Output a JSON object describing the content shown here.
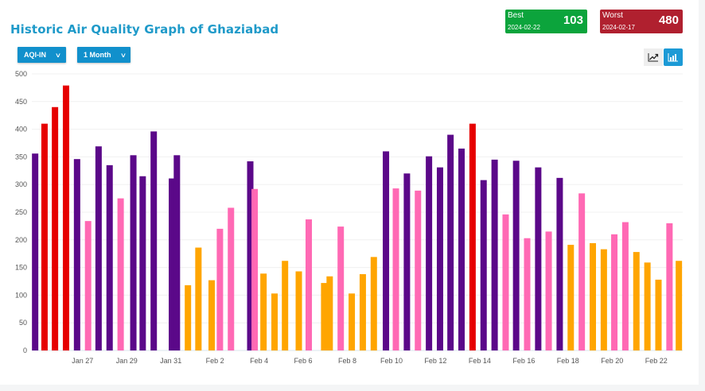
{
  "header": {
    "title": "Historic Air Quality Graph of Ghaziabad",
    "metric_dropdown": "AQI-IN",
    "range_dropdown": "1 Month"
  },
  "best": {
    "label": "Best",
    "date": "2024-02-22",
    "value": "103",
    "color": "#0ca43c"
  },
  "worst": {
    "label": "Worst",
    "date": "2024-02-17",
    "value": "480",
    "color": "#b0202f"
  },
  "view_toggle": {
    "line_icon": "line-chart-icon",
    "bar_icon": "bar-chart-icon",
    "active": "bar"
  },
  "chart_data": {
    "type": "bar",
    "title": "Historic Air Quality Graph of Ghaziabad",
    "xlabel": "",
    "ylabel": "AQI-IN",
    "ylim": [
      0,
      500
    ],
    "yticks": [
      0,
      50,
      100,
      150,
      200,
      250,
      300,
      350,
      400,
      450,
      500
    ],
    "grid": true,
    "legend": "none",
    "x_tick_labels": [
      "Jan 27",
      "Jan 29",
      "Jan 31",
      "Feb 2",
      "Feb 4",
      "Feb 6",
      "Feb 8",
      "Feb 10",
      "Feb 12",
      "Feb 14",
      "Feb 16",
      "Feb 18",
      "Feb 20",
      "Feb 22"
    ],
    "x_tick_positions_days": [
      2.0,
      6.0,
      10.0,
      14.0,
      18.0,
      22.0,
      26.0,
      30.0,
      34.0,
      38.0,
      42.0,
      46.0,
      50.0,
      54.0
    ],
    "x_range_days": [
      -2.6,
      56.4
    ],
    "color_scale": [
      {
        "max": 100,
        "color": "#59b61f"
      },
      {
        "max": 200,
        "color": "#ffa500"
      },
      {
        "max": 300,
        "color": "#ff69b4"
      },
      {
        "max": 400,
        "color": "#5b0889"
      },
      {
        "max": 500,
        "color": "#e60000"
      }
    ],
    "bars": [
      {
        "x": -2.3,
        "value": 356
      },
      {
        "x": -1.45,
        "value": 410
      },
      {
        "x": -0.5,
        "value": 440
      },
      {
        "x": 0.5,
        "value": 479
      },
      {
        "x": 1.5,
        "value": 346
      },
      {
        "x": 2.5,
        "value": 234
      },
      {
        "x": 3.45,
        "value": 369
      },
      {
        "x": 4.45,
        "value": 335
      },
      {
        "x": 5.45,
        "value": 275
      },
      {
        "x": 6.6,
        "value": 353
      },
      {
        "x": 7.45,
        "value": 315
      },
      {
        "x": 8.45,
        "value": 396
      },
      {
        "x": 10.1,
        "value": 311
      },
      {
        "x": 10.55,
        "value": 353
      },
      {
        "x": 11.55,
        "value": 118
      },
      {
        "x": 12.5,
        "value": 186
      },
      {
        "x": 13.7,
        "value": 127
      },
      {
        "x": 14.45,
        "value": 220
      },
      {
        "x": 15.45,
        "value": 258
      },
      {
        "x": 17.2,
        "value": 342
      },
      {
        "x": 17.6,
        "value": 292
      },
      {
        "x": 18.4,
        "value": 139
      },
      {
        "x": 19.4,
        "value": 103
      },
      {
        "x": 20.35,
        "value": 162
      },
      {
        "x": 21.6,
        "value": 143
      },
      {
        "x": 22.5,
        "value": 237
      },
      {
        "x": 23.9,
        "value": 122
      },
      {
        "x": 24.4,
        "value": 134
      },
      {
        "x": 25.4,
        "value": 224
      },
      {
        "x": 26.4,
        "value": 103
      },
      {
        "x": 27.4,
        "value": 138
      },
      {
        "x": 28.4,
        "value": 169
      },
      {
        "x": 29.5,
        "value": 360
      },
      {
        "x": 30.4,
        "value": 293
      },
      {
        "x": 31.4,
        "value": 320
      },
      {
        "x": 32.4,
        "value": 289
      },
      {
        "x": 33.4,
        "value": 351
      },
      {
        "x": 34.4,
        "value": 331
      },
      {
        "x": 35.35,
        "value": 390
      },
      {
        "x": 36.35,
        "value": 365
      },
      {
        "x": 37.35,
        "value": 410
      },
      {
        "x": 38.35,
        "value": 308
      },
      {
        "x": 39.35,
        "value": 345
      },
      {
        "x": 40.35,
        "value": 246
      },
      {
        "x": 41.3,
        "value": 343
      },
      {
        "x": 42.3,
        "value": 203
      },
      {
        "x": 43.3,
        "value": 331
      },
      {
        "x": 44.25,
        "value": 215
      },
      {
        "x": 45.25,
        "value": 312
      },
      {
        "x": 46.25,
        "value": 191
      },
      {
        "x": 47.25,
        "value": 284
      },
      {
        "x": 48.25,
        "value": 194
      },
      {
        "x": 49.25,
        "value": 183
      },
      {
        "x": 50.2,
        "value": 210
      },
      {
        "x": 51.2,
        "value": 232
      },
      {
        "x": 52.2,
        "value": 178
      },
      {
        "x": 53.2,
        "value": 159
      },
      {
        "x": 54.2,
        "value": 128
      },
      {
        "x": 55.2,
        "value": 230
      },
      {
        "x": 56.05,
        "value": 162
      }
    ]
  }
}
